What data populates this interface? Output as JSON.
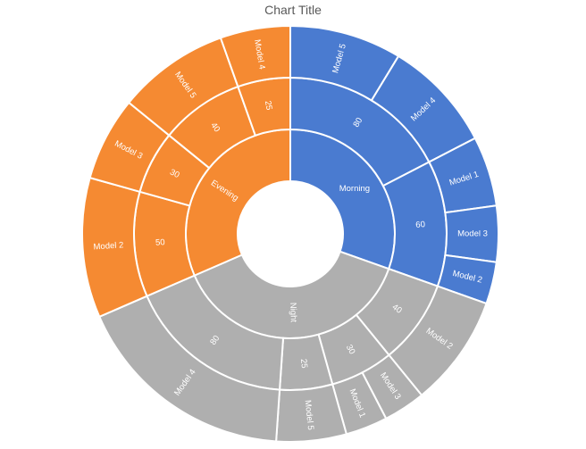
{
  "chart_data": {
    "type": "sunburst",
    "title": "Chart Title",
    "colors": {
      "Morning": "#4a7bd0",
      "Evening": "#f58a32",
      "Night": "#afafaf"
    },
    "groups": [
      {
        "name": "Morning",
        "children": [
          {
            "label": "80",
            "value": 80,
            "leaves": [
              {
                "name": "Model 5",
                "value": 40
              },
              {
                "name": "Model 4",
                "value": 40
              }
            ]
          },
          {
            "label": "60",
            "value": 60,
            "leaves": [
              {
                "name": "Model 1",
                "value": 25
              },
              {
                "name": "Model 3",
                "value": 20
              },
              {
                "name": "Model 2",
                "value": 15
              }
            ]
          }
        ]
      },
      {
        "name": "Night",
        "children": [
          {
            "label": "40",
            "value": 40,
            "leaves": [
              {
                "name": "Model 2",
                "value": 40
              }
            ]
          },
          {
            "label": "30",
            "value": 30,
            "leaves": [
              {
                "name": "Model 3",
                "value": 15
              },
              {
                "name": "Model 1",
                "value": 15
              }
            ]
          },
          {
            "label": "25",
            "value": 25,
            "leaves": [
              {
                "name": "Model 5",
                "value": 25
              }
            ]
          },
          {
            "label": "80",
            "value": 80,
            "leaves": [
              {
                "name": "Model 4",
                "value": 80
              }
            ]
          }
        ]
      },
      {
        "name": "Evening",
        "children": [
          {
            "label": "50",
            "value": 50,
            "leaves": [
              {
                "name": "Model 2",
                "value": 50
              }
            ]
          },
          {
            "label": "30",
            "value": 30,
            "leaves": [
              {
                "name": "Model 3",
                "value": 30
              }
            ]
          },
          {
            "label": "40",
            "value": 40,
            "leaves": [
              {
                "name": "Model 5",
                "value": 40
              }
            ]
          },
          {
            "label": "25",
            "value": 25,
            "leaves": [
              {
                "name": "Model 4",
                "value": 25
              }
            ]
          }
        ]
      }
    ]
  }
}
